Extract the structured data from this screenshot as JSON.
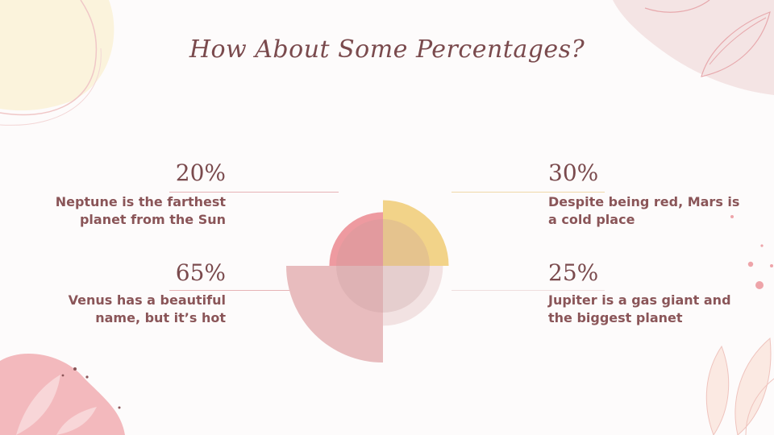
{
  "title": "How About Some Percentages?",
  "colors": {
    "neptune": "#ee9aa0",
    "mars": "#f2d389",
    "venus": "#e8bcbe",
    "jupiter": "#f2e2e2",
    "inner_circle": "#c7999b",
    "title_text": "#7a4a4d"
  },
  "items": [
    {
      "percent_label": "20%",
      "description": "Neptune is the farthest planet from the Sun"
    },
    {
      "percent_label": "30%",
      "description": "Despite being red, Mars is a cold place"
    },
    {
      "percent_label": "65%",
      "description": "Venus has a beautiful name, but it’s hot"
    },
    {
      "percent_label": "25%",
      "description": "Jupiter is a gas giant and the biggest planet"
    }
  ],
  "chart_data": {
    "type": "pie",
    "subtype": "polar-area",
    "categories": [
      "Neptune",
      "Mars",
      "Venus",
      "Jupiter"
    ],
    "values": [
      20,
      30,
      65,
      25
    ],
    "quadrants": [
      "top-left",
      "top-right",
      "bottom-left",
      "bottom-right"
    ]
  }
}
